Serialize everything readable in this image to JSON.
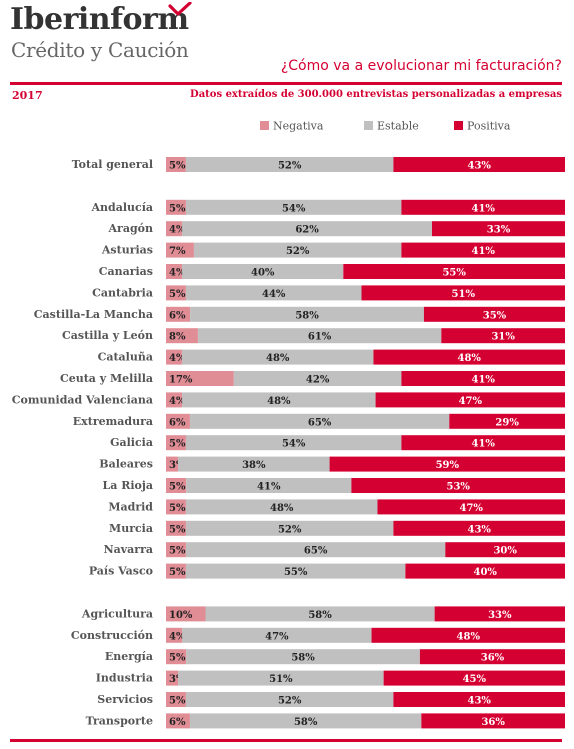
{
  "header": {
    "brand": "Iberinform",
    "brand_sub": "Crédito y Caución",
    "title": "¿Cómo va a evolucionar mi facturación?",
    "year": "2017",
    "subtitle": "Datos extraídos de 300.000 entrevistas personalizadas a empresas"
  },
  "colors": {
    "negativa": "#e08d96",
    "estable": "#c0c0c0",
    "positiva": "#d50032",
    "accent": "#d50032"
  },
  "chart_data": {
    "type": "bar",
    "stacked": true,
    "orientation": "horizontal",
    "unit": "%",
    "legend_position": "top",
    "series_names": [
      "Negativa",
      "Estable",
      "Positiva"
    ],
    "groups": [
      {
        "rows": [
          {
            "label": "Total general",
            "values": [
              5,
              52,
              43
            ]
          }
        ]
      },
      {
        "rows": [
          {
            "label": "Andalucía",
            "values": [
              5,
              54,
              41
            ]
          },
          {
            "label": "Aragón",
            "values": [
              4,
              62,
              33
            ]
          },
          {
            "label": "Asturias",
            "values": [
              7,
              52,
              41
            ]
          },
          {
            "label": "Canarias",
            "values": [
              4,
              40,
              55
            ]
          },
          {
            "label": "Cantabria",
            "values": [
              5,
              44,
              51
            ]
          },
          {
            "label": "Castilla-La Mancha",
            "values": [
              6,
              58,
              35
            ]
          },
          {
            "label": "Castilla y León",
            "values": [
              8,
              61,
              31
            ]
          },
          {
            "label": "Cataluña",
            "values": [
              4,
              48,
              48
            ]
          },
          {
            "label": "Ceuta y Melilla",
            "values": [
              17,
              42,
              41
            ]
          },
          {
            "label": "Comunidad Valenciana",
            "values": [
              4,
              48,
              47
            ]
          },
          {
            "label": "Extremadura",
            "values": [
              6,
              65,
              29
            ]
          },
          {
            "label": "Galicia",
            "values": [
              5,
              54,
              41
            ]
          },
          {
            "label": "Baleares",
            "values": [
              3,
              38,
              59
            ]
          },
          {
            "label": "La Rioja",
            "values": [
              5,
              41,
              53
            ]
          },
          {
            "label": "Madrid",
            "values": [
              5,
              48,
              47
            ]
          },
          {
            "label": "Murcia",
            "values": [
              5,
              52,
              43
            ]
          },
          {
            "label": "Navarra",
            "values": [
              5,
              65,
              30
            ]
          },
          {
            "label": "País Vasco",
            "values": [
              5,
              55,
              40
            ]
          }
        ]
      },
      {
        "rows": [
          {
            "label": "Agricultura",
            "values": [
              10,
              58,
              33
            ]
          },
          {
            "label": "Construcción",
            "values": [
              4,
              47,
              48
            ]
          },
          {
            "label": "Energía",
            "values": [
              5,
              58,
              36
            ]
          },
          {
            "label": "Industria",
            "values": [
              3,
              51,
              45
            ]
          },
          {
            "label": "Servicios",
            "values": [
              5,
              52,
              43
            ]
          },
          {
            "label": "Transporte",
            "values": [
              6,
              58,
              36
            ]
          }
        ]
      }
    ]
  }
}
